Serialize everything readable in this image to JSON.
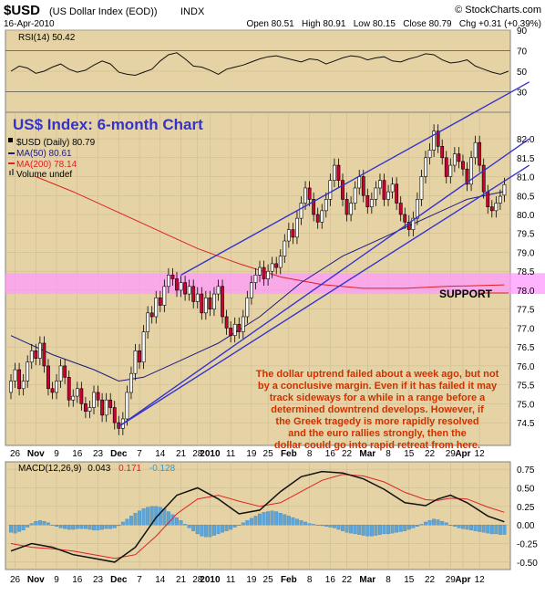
{
  "header": {
    "symbol": "$USD",
    "name": "(US Dollar Index (EOD))",
    "exchange": "INDX",
    "date": "16-Apr-2010",
    "copyright": "© StockCharts.com",
    "ohlc": "Open 80.51   High 80.91   Low 80.15   Close 80.79   Chg +0.31 (+0.39%)"
  },
  "colors": {
    "panel_bg": "#e6d3a5",
    "frame": "#808080",
    "grid": "#c8b88e",
    "up_candle": "#ffffff",
    "down_candle": "#cc0033",
    "ma50": "#1a1a80",
    "ma200": "#dd2222",
    "trendline": "#3333cc",
    "support_zone": "#ff99ff",
    "annotation": "#cc3300",
    "macd_hist": "#5da5d8",
    "title_text": "#3333cc"
  },
  "annotations": {
    "chart_title": "US$ Index: 6-month Chart",
    "support_label": "SUPPORT",
    "commentary": [
      "The dollar uptrend failed about a week ago, but not",
      "by a conclusive margin. Even if it has failed it may",
      "track sideways for a while in a range before a",
      "determined downtrend develops. However, if",
      "the Greek tragedy is more rapidly resolved",
      "and the euro rallies strongly, then the",
      "dollar could go into rapid retreat from here."
    ]
  },
  "chart_data": [
    {
      "type": "line",
      "panel": "RSI",
      "label": "RSI(14) 50.42",
      "ylim": [
        10,
        90
      ],
      "y_ticks": [
        30,
        50,
        70,
        90
      ],
      "guide_lines": [
        30,
        70
      ],
      "last_value": 50.42,
      "x": [
        0,
        2,
        4,
        6,
        8,
        10,
        12,
        14,
        16,
        18,
        20,
        22,
        24,
        26,
        28,
        30,
        32,
        34,
        36,
        38,
        40,
        42,
        44,
        46,
        48,
        50,
        52,
        54,
        56,
        58,
        60,
        62,
        64,
        66,
        68,
        70,
        72,
        74,
        76,
        78,
        80,
        82,
        84,
        86,
        88,
        90,
        92,
        94,
        96,
        98,
        100,
        102,
        104,
        106,
        108,
        110,
        112,
        114,
        116,
        118,
        120
      ],
      "values": [
        50,
        55,
        53,
        48,
        50,
        54,
        57,
        52,
        49,
        51,
        56,
        60,
        57,
        49,
        47,
        46,
        49,
        52,
        60,
        66,
        68,
        62,
        55,
        54,
        51,
        47,
        52,
        54,
        56,
        59,
        62,
        64,
        65,
        63,
        61,
        59,
        62,
        61,
        57,
        60,
        63,
        65,
        64,
        61,
        63,
        64,
        60,
        59,
        62,
        64,
        67,
        66,
        61,
        58,
        59,
        61,
        55,
        52,
        49,
        47,
        50
      ]
    },
    {
      "type": "candlestick",
      "panel": "price",
      "legend": [
        "$USD (Daily) 80.79",
        "MA(50) 80.61",
        "MA(200) 78.14",
        "Volume undef"
      ],
      "ylim": [
        73.9,
        82.7
      ],
      "y_ticks": [
        74.5,
        75.0,
        75.5,
        76.0,
        76.5,
        77.0,
        77.5,
        78.0,
        78.5,
        79.0,
        79.5,
        80.0,
        80.5,
        81.0,
        81.5,
        82.0
      ],
      "support_zone": [
        77.9,
        78.45
      ],
      "x_ticks": [
        {
          "i": 1,
          "label": "26"
        },
        {
          "i": 6,
          "label": "Nov"
        },
        {
          "i": 11,
          "label": "9"
        },
        {
          "i": 16,
          "label": "16"
        },
        {
          "i": 21,
          "label": "23"
        },
        {
          "i": 26,
          "label": "Dec"
        },
        {
          "i": 31,
          "label": "7"
        },
        {
          "i": 36,
          "label": "14"
        },
        {
          "i": 41,
          "label": "21"
        },
        {
          "i": 45,
          "label": "28"
        },
        {
          "i": 48,
          "label": "2010"
        },
        {
          "i": 53,
          "label": "11"
        },
        {
          "i": 58,
          "label": "19"
        },
        {
          "i": 62,
          "label": "25"
        },
        {
          "i": 67,
          "label": "Feb"
        },
        {
          "i": 72,
          "label": "8"
        },
        {
          "i": 77,
          "label": "16"
        },
        {
          "i": 81,
          "label": "22"
        },
        {
          "i": 86,
          "label": "Mar"
        },
        {
          "i": 91,
          "label": "8"
        },
        {
          "i": 96,
          "label": "15"
        },
        {
          "i": 101,
          "label": "22"
        },
        {
          "i": 106,
          "label": "29"
        },
        {
          "i": 109,
          "label": "Apr"
        },
        {
          "i": 113,
          "label": "12"
        }
      ],
      "trendlines": [
        {
          "from": [
            26,
            74.4
          ],
          "to": [
            125,
            82.0
          ]
        },
        {
          "from": [
            41,
            78.4
          ],
          "to": [
            125,
            83.5
          ]
        },
        {
          "from": [
            26,
            74.4
          ],
          "to": [
            125,
            81.3
          ]
        }
      ],
      "close": [
        75.6,
        75.9,
        75.4,
        75.6,
        76.1,
        76.4,
        76.2,
        76.6,
        76.0,
        75.4,
        75.3,
        75.6,
        76.0,
        75.7,
        75.1,
        75.2,
        75.4,
        75.0,
        74.8,
        74.9,
        75.3,
        75.1,
        74.7,
        75.1,
        74.9,
        74.5,
        74.35,
        74.6,
        75.3,
        75.8,
        76.4,
        76.1,
        76.9,
        77.4,
        77.3,
        77.8,
        77.6,
        78.1,
        78.4,
        78.3,
        78.0,
        78.2,
        77.9,
        78.1,
        77.7,
        77.9,
        77.4,
        77.8,
        77.5,
        77.9,
        78.1,
        77.3,
        77.0,
        76.8,
        77.1,
        76.9,
        77.3,
        77.8,
        78.2,
        78.4,
        78.6,
        78.3,
        78.5,
        78.7,
        78.6,
        78.9,
        79.3,
        79.6,
        79.4,
        79.9,
        80.3,
        80.7,
        80.4,
        80.0,
        79.8,
        80.1,
        80.4,
        80.9,
        81.3,
        80.9,
        80.4,
        80.0,
        80.3,
        80.7,
        81.0,
        80.5,
        80.2,
        80.4,
        80.7,
        80.9,
        80.4,
        80.6,
        80.8,
        80.3,
        80.0,
        79.8,
        79.6,
        79.9,
        80.4,
        81.0,
        81.5,
        81.7,
        82.2,
        81.8,
        81.5,
        81.0,
        81.3,
        81.6,
        81.4,
        81.2,
        80.8,
        81.5,
        81.9,
        81.3,
        80.6,
        80.2,
        80.1,
        80.3,
        80.48,
        80.79
      ],
      "open": [
        75.3,
        75.6,
        75.9,
        75.4,
        75.6,
        76.1,
        76.4,
        76.2,
        76.6,
        76.0,
        75.4,
        75.3,
        75.6,
        76.0,
        75.7,
        75.1,
        75.2,
        75.4,
        75.0,
        74.8,
        74.9,
        75.3,
        75.1,
        74.7,
        75.1,
        74.9,
        74.5,
        74.35,
        74.6,
        75.3,
        75.8,
        76.4,
        76.1,
        76.9,
        77.4,
        77.3,
        77.8,
        77.6,
        78.1,
        78.4,
        78.3,
        78.0,
        78.2,
        77.9,
        78.1,
        77.7,
        77.9,
        77.4,
        77.8,
        77.5,
        77.9,
        78.1,
        77.3,
        77.0,
        76.8,
        77.1,
        76.9,
        77.3,
        77.8,
        78.2,
        78.4,
        78.6,
        78.3,
        78.5,
        78.7,
        78.6,
        78.9,
        79.3,
        79.6,
        79.4,
        79.9,
        80.3,
        80.7,
        80.4,
        80.0,
        79.8,
        80.1,
        80.4,
        80.9,
        81.3,
        80.9,
        80.4,
        80.0,
        80.3,
        80.7,
        81.0,
        80.5,
        80.2,
        80.4,
        80.7,
        80.9,
        80.4,
        80.6,
        80.8,
        80.3,
        80.0,
        79.8,
        79.6,
        79.9,
        80.4,
        81.0,
        81.5,
        81.7,
        82.2,
        81.8,
        81.5,
        81.0,
        81.3,
        81.6,
        81.4,
        81.2,
        80.8,
        81.5,
        81.9,
        81.3,
        80.6,
        80.2,
        80.1,
        80.3,
        80.51
      ],
      "ma50": [
        {
          "i": 0,
          "v": 76.8
        },
        {
          "i": 10,
          "v": 76.3
        },
        {
          "i": 20,
          "v": 75.9
        },
        {
          "i": 26,
          "v": 75.6
        },
        {
          "i": 32,
          "v": 75.7
        },
        {
          "i": 40,
          "v": 76.1
        },
        {
          "i": 50,
          "v": 76.6
        },
        {
          "i": 60,
          "v": 77.3
        },
        {
          "i": 70,
          "v": 78.2
        },
        {
          "i": 80,
          "v": 78.9
        },
        {
          "i": 90,
          "v": 79.4
        },
        {
          "i": 100,
          "v": 79.9
        },
        {
          "i": 110,
          "v": 80.4
        },
        {
          "i": 119,
          "v": 80.61
        }
      ],
      "ma200": [
        {
          "i": 6,
          "v": 81.0
        },
        {
          "i": 15,
          "v": 80.6
        },
        {
          "i": 25,
          "v": 80.1
        },
        {
          "i": 35,
          "v": 79.6
        },
        {
          "i": 45,
          "v": 79.1
        },
        {
          "i": 55,
          "v": 78.7
        },
        {
          "i": 65,
          "v": 78.35
        },
        {
          "i": 75,
          "v": 78.15
        },
        {
          "i": 85,
          "v": 78.05
        },
        {
          "i": 95,
          "v": 78.05
        },
        {
          "i": 105,
          "v": 78.1
        },
        {
          "i": 119,
          "v": 78.14
        }
      ]
    },
    {
      "type": "line",
      "panel": "MACD",
      "label": "MACD(12,26,9)",
      "values_shown": [
        "0.043",
        "0.171",
        "-0.128"
      ],
      "ylim": [
        -0.6,
        0.85
      ],
      "y_ticks": [
        -0.5,
        -0.25,
        0.0,
        0.25,
        0.5,
        0.75
      ],
      "series": [
        {
          "name": "MACD",
          "points": [
            [
              0,
              -0.35
            ],
            [
              5,
              -0.25
            ],
            [
              10,
              -0.3
            ],
            [
              15,
              -0.4
            ],
            [
              20,
              -0.45
            ],
            [
              25,
              -0.5
            ],
            [
              30,
              -0.3
            ],
            [
              35,
              0.1
            ],
            [
              40,
              0.4
            ],
            [
              45,
              0.5
            ],
            [
              50,
              0.35
            ],
            [
              55,
              0.15
            ],
            [
              60,
              0.2
            ],
            [
              65,
              0.45
            ],
            [
              70,
              0.65
            ],
            [
              75,
              0.72
            ],
            [
              80,
              0.7
            ],
            [
              85,
              0.62
            ],
            [
              90,
              0.48
            ],
            [
              95,
              0.3
            ],
            [
              100,
              0.26
            ],
            [
              103,
              0.35
            ],
            [
              106,
              0.4
            ],
            [
              110,
              0.3
            ],
            [
              115,
              0.12
            ],
            [
              119,
              0.043
            ]
          ]
        },
        {
          "name": "Signal",
          "points": [
            [
              0,
              -0.25
            ],
            [
              5,
              -0.3
            ],
            [
              10,
              -0.32
            ],
            [
              15,
              -0.35
            ],
            [
              20,
              -0.4
            ],
            [
              25,
              -0.45
            ],
            [
              30,
              -0.4
            ],
            [
              35,
              -0.15
            ],
            [
              40,
              0.15
            ],
            [
              45,
              0.35
            ],
            [
              50,
              0.4
            ],
            [
              55,
              0.32
            ],
            [
              60,
              0.25
            ],
            [
              65,
              0.3
            ],
            [
              70,
              0.45
            ],
            [
              75,
              0.6
            ],
            [
              80,
              0.68
            ],
            [
              85,
              0.66
            ],
            [
              90,
              0.58
            ],
            [
              95,
              0.44
            ],
            [
              100,
              0.34
            ],
            [
              103,
              0.33
            ],
            [
              106,
              0.36
            ],
            [
              110,
              0.35
            ],
            [
              115,
              0.24
            ],
            [
              119,
              0.171
            ]
          ]
        }
      ],
      "histogram": [
        -0.1,
        -0.11,
        -0.09,
        -0.07,
        -0.03,
        0.02,
        0.05,
        0.06,
        0.05,
        0.03,
        0.0,
        -0.02,
        -0.04,
        -0.05,
        -0.06,
        -0.06,
        -0.05,
        -0.05,
        -0.05,
        -0.06,
        -0.07,
        -0.07,
        -0.06,
        -0.05,
        -0.05,
        -0.04,
        -0.01,
        0.04,
        0.08,
        0.12,
        0.16,
        0.19,
        0.22,
        0.24,
        0.25,
        0.25,
        0.24,
        0.22,
        0.18,
        0.14,
        0.1,
        0.06,
        0.01,
        -0.04,
        -0.08,
        -0.12,
        -0.15,
        -0.16,
        -0.16,
        -0.14,
        -0.12,
        -0.1,
        -0.08,
        -0.06,
        -0.03,
        0.0,
        0.03,
        0.06,
        0.09,
        0.12,
        0.15,
        0.17,
        0.18,
        0.19,
        0.18,
        0.16,
        0.14,
        0.12,
        0.1,
        0.08,
        0.06,
        0.04,
        0.02,
        0.01,
        0.0,
        -0.01,
        -0.02,
        -0.03,
        -0.04,
        -0.06,
        -0.08,
        -0.1,
        -0.11,
        -0.12,
        -0.13,
        -0.14,
        -0.15,
        -0.15,
        -0.14,
        -0.13,
        -0.12,
        -0.12,
        -0.11,
        -0.1,
        -0.09,
        -0.08,
        -0.06,
        -0.04,
        -0.02,
        0.01,
        0.04,
        0.06,
        0.08,
        0.07,
        0.05,
        0.03,
        0.0,
        -0.02,
        -0.04,
        -0.05,
        -0.06,
        -0.07,
        -0.08,
        -0.09,
        -0.1,
        -0.11,
        -0.12,
        -0.12,
        -0.13,
        -0.128
      ]
    }
  ]
}
